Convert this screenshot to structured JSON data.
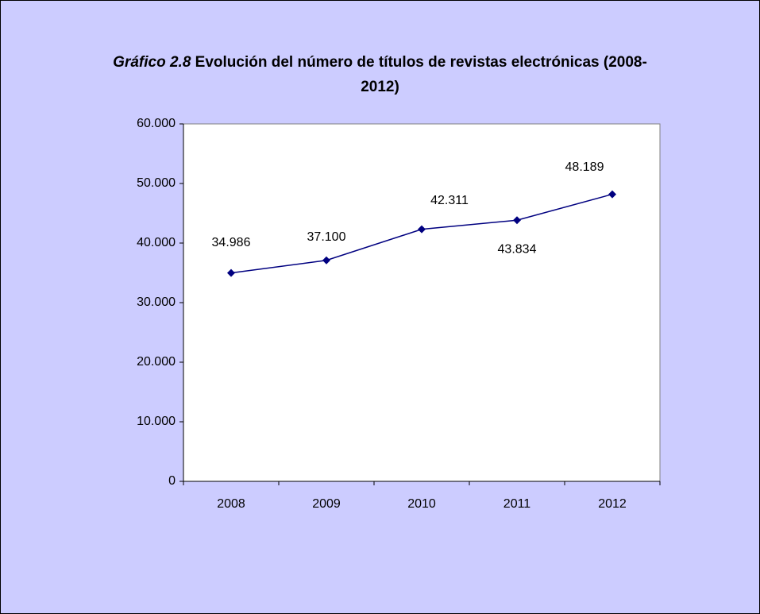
{
  "chart_data": {
    "type": "line",
    "title": {
      "prefix": "Gráfico 2.8",
      "text": "Evolución del número de títulos de revistas electrónicas (2008-2012)"
    },
    "categories": [
      "2008",
      "2009",
      "2010",
      "2011",
      "2012"
    ],
    "series": [
      {
        "name": "Títulos de revistas electrónicas",
        "color": "#000080",
        "values": [
          34986,
          37100,
          42311,
          43834,
          48189
        ],
        "value_labels": [
          "34.986",
          "37.100",
          "42.311",
          "43.834",
          "48.189"
        ]
      }
    ],
    "ylim": [
      0,
      60000
    ],
    "yticks": [
      0,
      {
        "value": 10000,
        "label": "10.000"
      },
      {
        "value": 20000,
        "label": "20.000"
      },
      {
        "value": 30000,
        "label": "30.000"
      },
      {
        "value": 40000,
        "label": "40.000"
      },
      {
        "value": 50000,
        "label": "50.000"
      },
      {
        "value": 60000,
        "label": "60.000"
      }
    ],
    "grid": false,
    "legend": false
  }
}
